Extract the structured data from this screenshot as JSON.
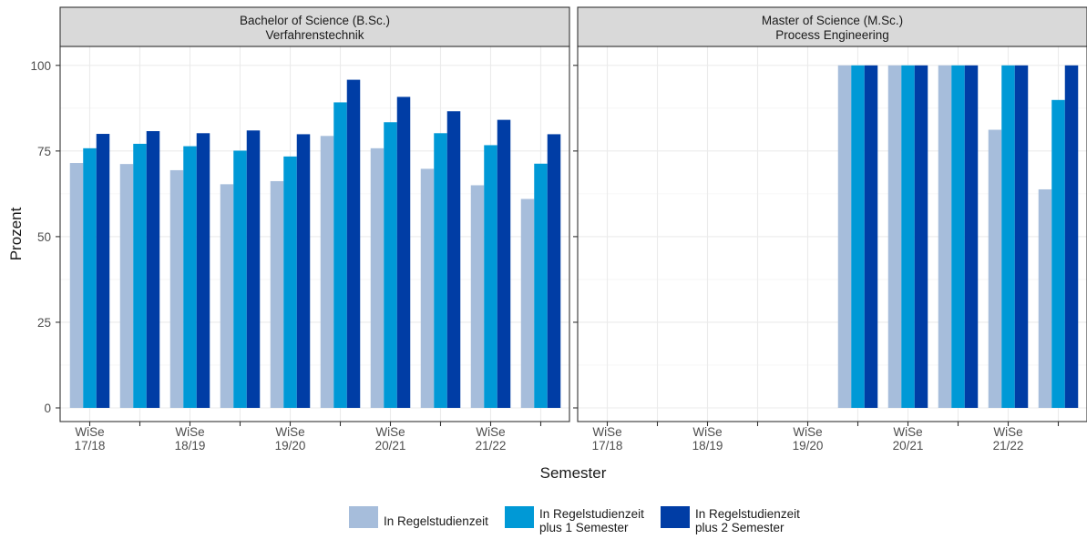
{
  "chart_data": {
    "type": "bar",
    "xlabel": "Semester",
    "ylabel": "Prozent",
    "ylim": [
      0,
      100
    ],
    "yticks": [
      0,
      25,
      50,
      75,
      100
    ],
    "grid": true,
    "legend_position": "bottom",
    "tick_labels": [
      [
        "WiSe",
        "17/18"
      ],
      [
        "WiSe",
        "18/19"
      ],
      [
        "WiSe",
        "19/20"
      ],
      [
        "WiSe",
        "20/21"
      ],
      [
        "WiSe",
        "21/22"
      ]
    ],
    "series": [
      {
        "name": "In Regelstudienzeit",
        "color": "#a6bddb"
      },
      {
        "name": "In Regelstudienzeit plus 1 Semester",
        "color": "#0099d6"
      },
      {
        "name": "In Regelstudienzeit plus 2 Semester",
        "color": "#003da5"
      }
    ],
    "legend_entries": [
      [
        "In Regelstudienzeit"
      ],
      [
        "In Regelstudienzeit",
        "plus 1 Semester"
      ],
      [
        "In Regelstudienzeit",
        "plus 2 Semester"
      ]
    ],
    "panels": [
      {
        "title": [
          "Bachelor of Science (B.Sc.)",
          "Verfahrenstechnik"
        ],
        "values": [
          [
            71.5,
            75.8,
            80.0
          ],
          [
            71.2,
            77.1,
            80.8
          ],
          [
            69.4,
            76.4,
            80.2
          ],
          [
            65.3,
            75.1,
            81.0
          ],
          [
            66.2,
            73.4,
            79.9
          ],
          [
            79.4,
            89.2,
            95.8
          ],
          [
            75.8,
            83.4,
            90.8
          ],
          [
            69.8,
            80.2,
            86.6
          ],
          [
            65.0,
            76.7,
            84.1
          ],
          [
            61.0,
            71.3,
            79.9
          ]
        ]
      },
      {
        "title": [
          "Master of Science (M.Sc.)",
          "Process Engineering"
        ],
        "values": [
          null,
          null,
          null,
          null,
          null,
          [
            100,
            100,
            100
          ],
          [
            100,
            100,
            100
          ],
          [
            100,
            100,
            100
          ],
          [
            81.2,
            100,
            100
          ],
          [
            63.8,
            89.9,
            100
          ]
        ]
      }
    ]
  }
}
